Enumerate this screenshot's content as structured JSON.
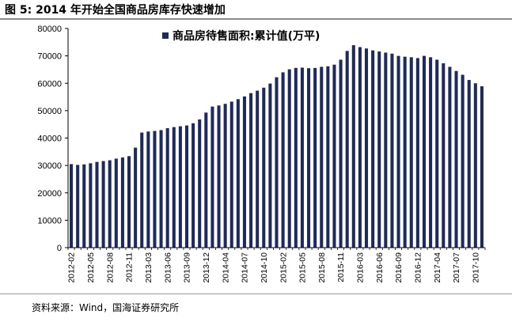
{
  "figure": {
    "title": "图 5:  2014 年开始全国商品房库存快速增加",
    "source": "资料来源：Wind，国海证券研究所"
  },
  "colors": {
    "bar": "#1f2a5c",
    "axis": "#000000",
    "rule": "#8a8a8a"
  },
  "chart_data": {
    "type": "bar",
    "title": "",
    "xlabel": "",
    "ylabel": "",
    "ylim": [
      0,
      80000
    ],
    "yticks": [
      0,
      10000,
      20000,
      30000,
      40000,
      50000,
      60000,
      70000,
      80000
    ],
    "grid": false,
    "legend_position": "top-center",
    "x_tick_labels": [
      "2012-02",
      "2012-05",
      "2012-08",
      "2012-11",
      "2013-03",
      "2013-06",
      "2013-09",
      "2013-12",
      "2014-04",
      "2014-07",
      "2014-10",
      "2015-02",
      "2015-05",
      "2015-08",
      "2015-11",
      "2016-03",
      "2016-06",
      "2016-09",
      "2016-12",
      "2017-04",
      "2017-07",
      "2017-10"
    ],
    "categories": [
      "2012-02",
      "2012-03",
      "2012-04",
      "2012-05",
      "2012-06",
      "2012-07",
      "2012-08",
      "2012-09",
      "2012-10",
      "2012-11",
      "2012-12",
      "2013-02",
      "2013-03",
      "2013-04",
      "2013-05",
      "2013-06",
      "2013-07",
      "2013-08",
      "2013-09",
      "2013-10",
      "2013-11",
      "2013-12",
      "2014-02",
      "2014-03",
      "2014-04",
      "2014-05",
      "2014-06",
      "2014-07",
      "2014-08",
      "2014-09",
      "2014-10",
      "2014-11",
      "2014-12",
      "2015-02",
      "2015-03",
      "2015-04",
      "2015-05",
      "2015-06",
      "2015-07",
      "2015-08",
      "2015-09",
      "2015-10",
      "2015-11",
      "2015-12",
      "2016-02",
      "2016-03",
      "2016-04",
      "2016-05",
      "2016-06",
      "2016-07",
      "2016-08",
      "2016-09",
      "2016-10",
      "2016-11",
      "2016-12",
      "2017-02",
      "2017-03",
      "2017-04",
      "2017-05",
      "2017-06",
      "2017-07",
      "2017-08",
      "2017-09",
      "2017-10",
      "2017-11"
    ],
    "series": [
      {
        "name": "商品房待售面积:累计值(万平)",
        "values": [
          30500,
          30200,
          30400,
          30800,
          31300,
          31600,
          31900,
          32500,
          32900,
          33400,
          36500,
          42000,
          42400,
          42600,
          42900,
          43600,
          44000,
          44300,
          44600,
          45400,
          46800,
          49300,
          51500,
          51900,
          52500,
          53300,
          54200,
          55200,
          56400,
          57300,
          58400,
          59900,
          62200,
          64000,
          65100,
          65600,
          65700,
          65500,
          65600,
          66000,
          66200,
          66800,
          68600,
          71800,
          73900,
          73200,
          72700,
          72000,
          71600,
          71200,
          70800,
          70000,
          69700,
          69500,
          69200,
          70000,
          69500,
          68600,
          67300,
          66000,
          64500,
          63100,
          61200,
          60000,
          58900
        ]
      }
    ]
  }
}
